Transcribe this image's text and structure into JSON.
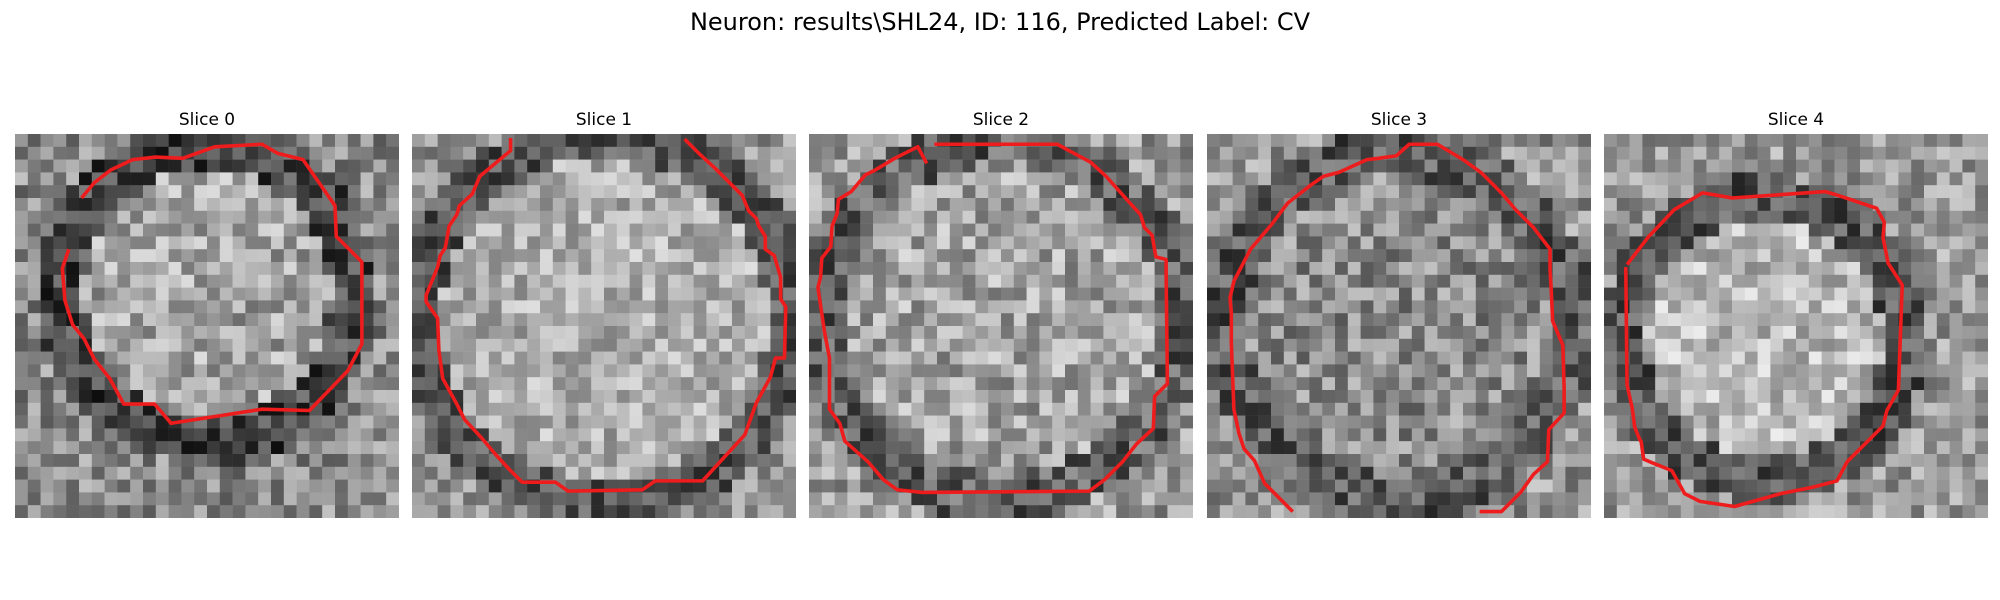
{
  "title": "Neuron: results\\SHL24, ID: 116, Predicted Label: CV",
  "contour_color": "#ee1c1c",
  "panels": [
    {
      "title": "Slice 0"
    },
    {
      "title": "Slice 1"
    },
    {
      "title": "Slice 2"
    },
    {
      "title": "Slice 3"
    },
    {
      "title": "Slice 4"
    }
  ]
}
